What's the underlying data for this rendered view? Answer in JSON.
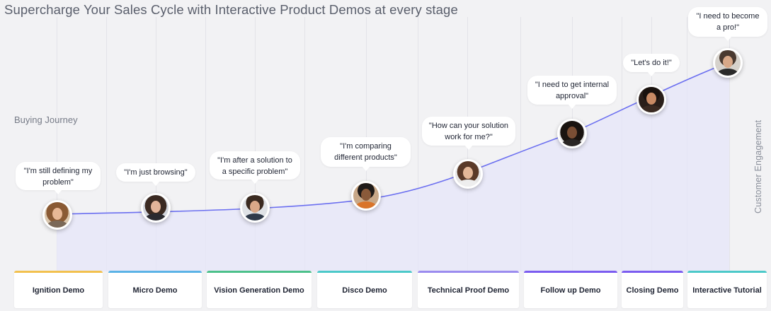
{
  "title": "Supercharge Your Sales Cycle with Interactive Product Demos at every stage",
  "y_axis_label": "Buying Journey",
  "engagement_label": "Customer Engagement",
  "colors": {
    "line": "#6b6ff0",
    "area": "#e6e6fa"
  },
  "stages": [
    {
      "label": "Ignition Demo",
      "accent": "#f2c14e",
      "quote": "\"I'm still defining my problem\""
    },
    {
      "label": "Micro Demo",
      "accent": "#5bb3e6",
      "quote": "\"I'm just browsing\""
    },
    {
      "label": "Vision Generation Demo",
      "accent": "#4cc18a",
      "quote": "\"I'm after a solution to a specific problem\""
    },
    {
      "label": "Disco Demo",
      "accent": "#4cc9c9",
      "quote": "\"I'm comparing different products\""
    },
    {
      "label": "Technical Proof Demo",
      "accent": "#9b8cef",
      "quote": "\"How can your solution work for me?\""
    },
    {
      "label": "Follow up Demo",
      "accent": "#7b5cf0",
      "quote": "\"I need to get internal approval\""
    },
    {
      "label": "Closing Demo",
      "accent": "#7b5cf0",
      "quote": "\"Let's do it!\""
    },
    {
      "label": "Interactive Tutorial",
      "accent": "#4cc9c9",
      "quote": "\"I need to become a pro!\""
    }
  ]
}
